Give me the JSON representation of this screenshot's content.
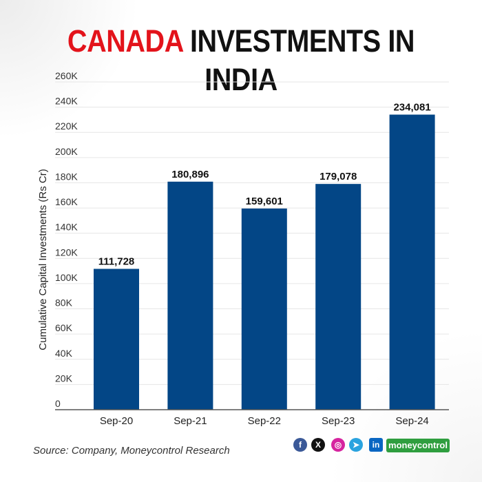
{
  "title": {
    "accent": "CANADA",
    "rest": "INVESTMENTS IN INDIA"
  },
  "source": "Source: Company, Moneycontrol Research",
  "brand": {
    "logo_text": "moneycontrol"
  },
  "colors": {
    "accent": "#e3131b",
    "bar": "#034686",
    "grid": "#e6e6e6",
    "logo": "#2f9e3f"
  },
  "social_icons": [
    "facebook-icon",
    "x-icon",
    "instagram-icon",
    "telegram-icon",
    "linkedin-icon"
  ],
  "chart_data": {
    "type": "bar",
    "title": "CANADA INVESTMENTS IN INDIA",
    "xlabel": "",
    "ylabel": "Cumulative Capital Investments (Rs Cr)",
    "categories": [
      "Sep-20",
      "Sep-21",
      "Sep-22",
      "Sep-23",
      "Sep-24"
    ],
    "values": [
      111728,
      180896,
      159601,
      179078,
      234081
    ],
    "data_labels": [
      "111,728",
      "180,896",
      "159,601",
      "179,078",
      "234,081"
    ],
    "ylim": [
      0,
      260000
    ],
    "yticks": [
      0,
      20000,
      40000,
      60000,
      80000,
      100000,
      120000,
      140000,
      160000,
      180000,
      200000,
      220000,
      240000,
      260000
    ],
    "ytick_labels": [
      "0",
      "20K",
      "40K",
      "60K",
      "80K",
      "100K",
      "120K",
      "140K",
      "160K",
      "180K",
      "200K",
      "220K",
      "240K",
      "260K"
    ],
    "grid": true,
    "legend": "none"
  }
}
